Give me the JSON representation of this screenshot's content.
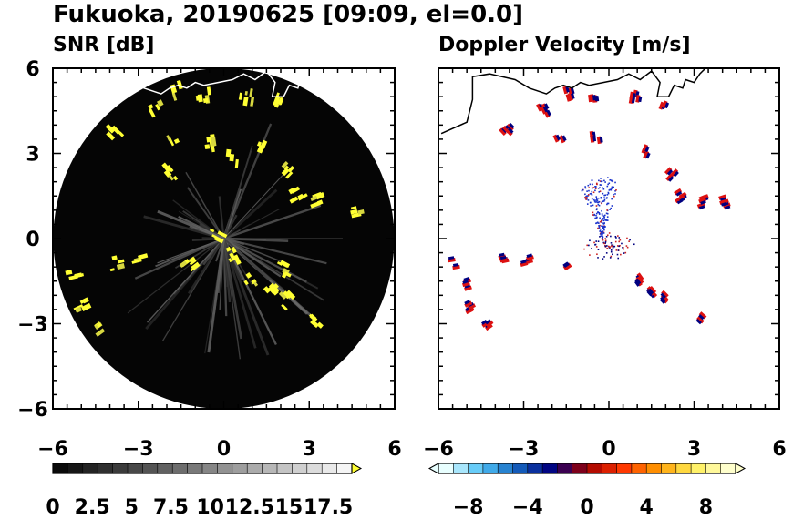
{
  "figure": {
    "title": "Fukuoka, 20190625 [09:09, el=0.0]"
  },
  "chart_data": [
    {
      "type": "heatmap",
      "title": "SNR [dB]",
      "xlim": [
        -6,
        6
      ],
      "ylim": [
        -6,
        6
      ],
      "xticks": [
        "−6",
        "−3",
        "0",
        "3",
        "6"
      ],
      "yticks": [
        "6",
        "3",
        "0",
        "−3",
        "−6"
      ],
      "x_tick_values": [
        -6,
        -3,
        0,
        3,
        6
      ],
      "y_tick_values": [
        6,
        3,
        0,
        -3,
        -6
      ],
      "domain": "circle",
      "colorbar": {
        "range": [
          0,
          19
        ],
        "levels": 20,
        "colors": [
          "#000000",
          "#1a1a1a",
          "#ffff33"
        ],
        "tick_labels": [
          "0",
          "2.5",
          "5",
          "7.5",
          "10",
          "12.5",
          "15",
          "17.5"
        ],
        "tick_values": [
          0,
          2.5,
          5,
          7.5,
          10,
          12.5,
          15,
          17.5
        ]
      },
      "echoes": [
        {
          "x": -3.8,
          "y": 3.8
        },
        {
          "x": -2.4,
          "y": 4.6
        },
        {
          "x": -1.6,
          "y": 5.2
        },
        {
          "x": -0.7,
          "y": 5.0
        },
        {
          "x": 0.8,
          "y": 5.0
        },
        {
          "x": 1.9,
          "y": 4.9
        },
        {
          "x": -1.8,
          "y": 3.6
        },
        {
          "x": -0.5,
          "y": 3.4
        },
        {
          "x": 0.3,
          "y": 2.8
        },
        {
          "x": 1.4,
          "y": 3.2
        },
        {
          "x": 2.3,
          "y": 2.4
        },
        {
          "x": 2.6,
          "y": 1.5
        },
        {
          "x": 3.3,
          "y": 1.3
        },
        {
          "x": 4.6,
          "y": 1.0
        },
        {
          "x": 1.0,
          "y": -1.4
        },
        {
          "x": 1.7,
          "y": -1.9
        },
        {
          "x": 2.2,
          "y": -2.2
        },
        {
          "x": 3.3,
          "y": -2.9
        },
        {
          "x": -5.3,
          "y": -1.2
        },
        {
          "x": -4.9,
          "y": -2.4
        },
        {
          "x": -4.2,
          "y": -3.1
        },
        {
          "x": -3.7,
          "y": -0.9
        },
        {
          "x": -2.9,
          "y": -0.8
        },
        {
          "x": -1.2,
          "y": -0.9
        },
        {
          "x": -0.2,
          "y": 0.1
        },
        {
          "x": 0.3,
          "y": -0.6
        },
        {
          "x": 2.1,
          "y": -1.1
        },
        {
          "x": -1.9,
          "y": 2.3
        }
      ]
    },
    {
      "type": "heatmap",
      "title": "Doppler Velocity [m/s]",
      "xlim": [
        -6,
        6
      ],
      "ylim": [
        -6,
        6
      ],
      "xticks": [
        "−6",
        "−3",
        "0",
        "3",
        "6"
      ],
      "x_tick_values": [
        -6,
        -3,
        0,
        3,
        6
      ],
      "colorbar": {
        "range": [
          -10,
          10
        ],
        "levels": 20,
        "colors": [
          "#e8ffff",
          "#4fc3f7",
          "#1565c0",
          "#000080",
          "#a00000",
          "#ff3300",
          "#ff9900",
          "#ffee55",
          "#ffffcc"
        ],
        "tick_labels": [
          "−8",
          "−4",
          "0",
          "4",
          "8"
        ],
        "tick_values": [
          -8,
          -4,
          0,
          4,
          8
        ]
      },
      "echoes": [
        {
          "x": -3.6,
          "y": 3.8
        },
        {
          "x": -2.3,
          "y": 4.5
        },
        {
          "x": -1.4,
          "y": 5.1
        },
        {
          "x": -0.6,
          "y": 5.0
        },
        {
          "x": 0.9,
          "y": 5.0
        },
        {
          "x": 1.9,
          "y": 4.8
        },
        {
          "x": -1.7,
          "y": 3.6
        },
        {
          "x": -0.5,
          "y": 3.5
        },
        {
          "x": 1.4,
          "y": 3.1
        },
        {
          "x": 2.2,
          "y": 2.3
        },
        {
          "x": 2.5,
          "y": 1.5
        },
        {
          "x": 3.3,
          "y": 1.3
        },
        {
          "x": 4.0,
          "y": 1.3
        },
        {
          "x": 1.0,
          "y": -1.4
        },
        {
          "x": 1.6,
          "y": -1.8
        },
        {
          "x": 2.1,
          "y": -2.1
        },
        {
          "x": 3.2,
          "y": -2.8
        },
        {
          "x": -5.5,
          "y": -0.9
        },
        {
          "x": -5.1,
          "y": -1.6
        },
        {
          "x": -4.8,
          "y": -2.4
        },
        {
          "x": -4.3,
          "y": -3.0
        },
        {
          "x": -3.7,
          "y": -0.8
        },
        {
          "x": -2.9,
          "y": -0.8
        },
        {
          "x": -1.5,
          "y": -1.0
        }
      ]
    }
  ]
}
